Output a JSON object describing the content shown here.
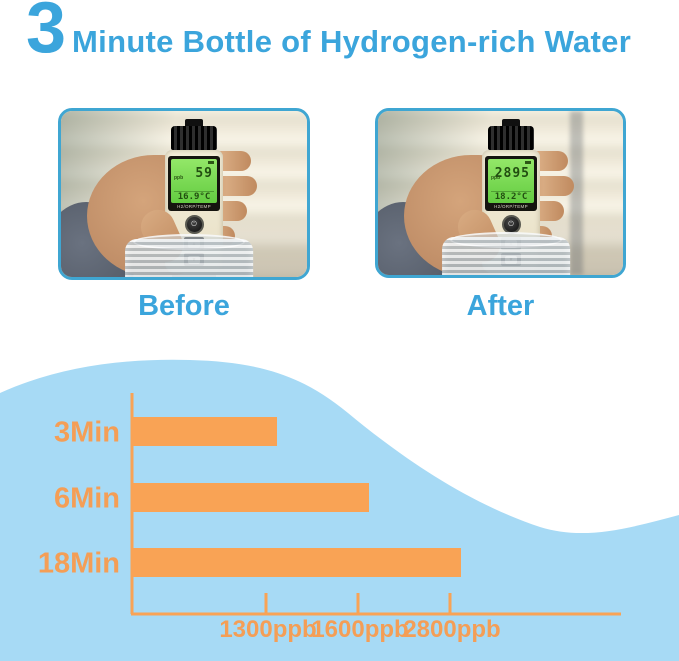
{
  "title": {
    "big_digit": "3",
    "rest": "Minute Bottle of Hydrogen-rich Water"
  },
  "colors": {
    "accent_blue": "#3BA5DC",
    "photo_border": "#3FA6D2",
    "wave_blue": "#A7DAF5",
    "bar_orange": "#F9A355",
    "chart_text_orange": "#F49E56",
    "lcd_green": "#86DE5F"
  },
  "photos": [
    {
      "label": "Before",
      "lcd_main": "59",
      "lcd_unit": "ppb",
      "lcd_temp": "16.9",
      "lcd_temp_unit": "°C",
      "panel_label": "H2/ORP/TEMP",
      "power_icon": "⏻",
      "btn_up": "▲",
      "btn_down": "▼"
    },
    {
      "label": "After",
      "lcd_main": "2895",
      "lcd_unit": "ppb",
      "lcd_temp": "18.2",
      "lcd_temp_unit": "°C",
      "panel_label": "H2/ORP/TEMP",
      "power_icon": "⏻",
      "btn_up": "▲",
      "btn_down": "▼"
    }
  ],
  "chart_data": {
    "type": "bar",
    "orientation": "horizontal",
    "title": "",
    "categories": [
      "3Min",
      "6Min",
      "18Min"
    ],
    "values": [
      1300,
      1600,
      2800
    ],
    "unit": "ppb",
    "tick_labels": [
      "1300ppb",
      "1600ppb",
      "2800ppb"
    ],
    "x_ticks": [
      1300,
      1600,
      2800
    ],
    "xlabel": "",
    "ylabel": "",
    "grid": false,
    "legend": false,
    "bar_color": "#F9A355",
    "text_color": "#F49E56",
    "background_color": "#A7DAF5"
  }
}
